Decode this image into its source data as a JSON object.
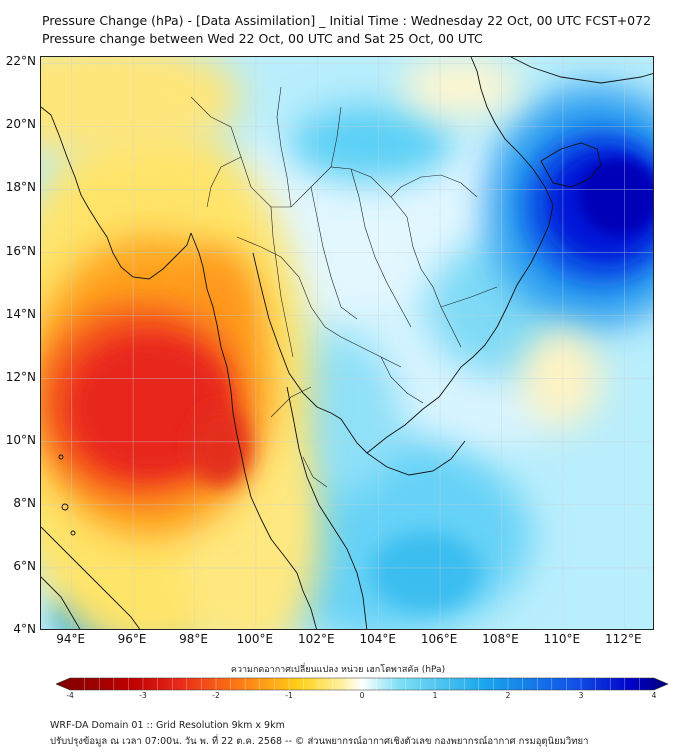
{
  "title_line1": "Pressure Change (hPa) - [Data Assimilation] _ Initial Time : Wednesday 22 Oct, 00 UTC FCST+072",
  "title_line2": "Pressure change between Wed 22 Oct, 00 UTC and Sat 25 Oct, 00 UTC",
  "map": {
    "lat_labels": [
      "22°N",
      "20°N",
      "18°N",
      "16°N",
      "14°N",
      "12°N",
      "10°N",
      "8°N",
      "6°N",
      "4°N"
    ],
    "lon_labels": [
      "94°E",
      "96°E",
      "98°E",
      "100°E",
      "102°E",
      "104°E",
      "106°E",
      "108°E",
      "110°E",
      "112°E"
    ],
    "extent": {
      "lon_min": 93.0,
      "lon_max": 113.0,
      "lat_min": 4.0,
      "lat_max": 22.2
    },
    "field_features": [
      {
        "name": "pressure-rise-center-south-china-sea",
        "lon": 111.0,
        "lat": 17.8,
        "value": 3.8
      },
      {
        "name": "pressure-fall-center-andaman-sea",
        "lon": 96.0,
        "lat": 11.0,
        "value": -3.2
      },
      {
        "name": "pressure-fall-upper-left",
        "lon": 94.5,
        "lat": 21.5,
        "value": -1.0
      }
    ]
  },
  "colorbar": {
    "title": "ความกดอากาศเปลี่ยนแปลง หน่วย เฮกโตพาสคัล (hPa)",
    "min": -4,
    "max": 4,
    "tick_labels": [
      "-4",
      "-3",
      "-2",
      "-1",
      "0",
      "1",
      "2",
      "3",
      "4"
    ],
    "colors": {
      "neg_strong": "#7a0000",
      "neg_mid": "#e8281a",
      "neg_weak": "#ffd21a",
      "neutral": "#ffffff",
      "pos_weak": "#7fe0f5",
      "pos_mid": "#1aa6ec",
      "pos_strong": "#0000c8",
      "pos_max": "#000078"
    }
  },
  "footer_line1": "WRF-DA Domain 01 :: Grid Resolution 9km x 9km",
  "footer_line2": "ปรับปรุงข้อมูล ณ เวลา 07:00น. วัน พ. ที่ 22 ต.ค. 2568 -- © ส่วนพยากรณ์อากาศเชิงตัวเลข กองพยากรณ์อากาศ กรมอุตุนิยมวิทยา"
}
